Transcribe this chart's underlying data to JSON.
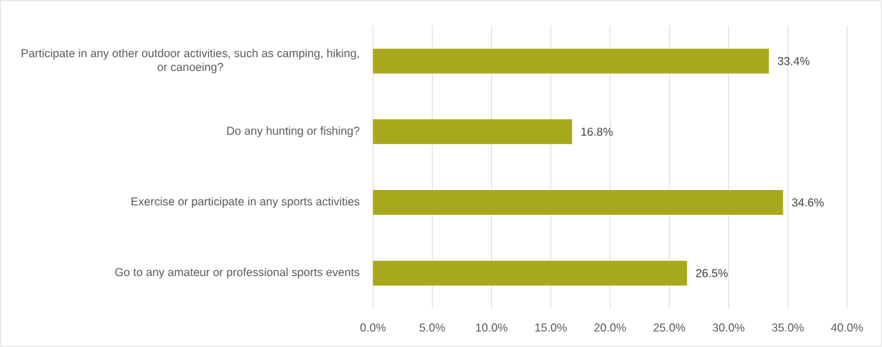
{
  "chart_data": {
    "type": "bar",
    "orientation": "horizontal",
    "categories": [
      "Participate in any other outdoor activities, such as camping, hiking, or canoeing?",
      "Do any hunting or fishing?",
      "Exercise or participate in any sports activities",
      "Go to any amateur or professional sports events"
    ],
    "values": [
      33.4,
      16.8,
      34.6,
      26.5
    ],
    "value_labels": [
      "33.4%",
      "16.8%",
      "34.6%",
      "26.5%"
    ],
    "color": "#a7a91a",
    "xlim": [
      0,
      40
    ],
    "xticks": [
      {
        "value": 0,
        "label": "0.0%"
      },
      {
        "value": 5,
        "label": "5.0%"
      },
      {
        "value": 10,
        "label": "10.0%"
      },
      {
        "value": 15,
        "label": "15.0%"
      },
      {
        "value": 20,
        "label": "20.0%"
      },
      {
        "value": 25,
        "label": "25.0%"
      },
      {
        "value": 30,
        "label": "30.0%"
      },
      {
        "value": 35,
        "label": "35.0%"
      },
      {
        "value": 40,
        "label": "40.0%"
      }
    ],
    "grid": "x"
  }
}
